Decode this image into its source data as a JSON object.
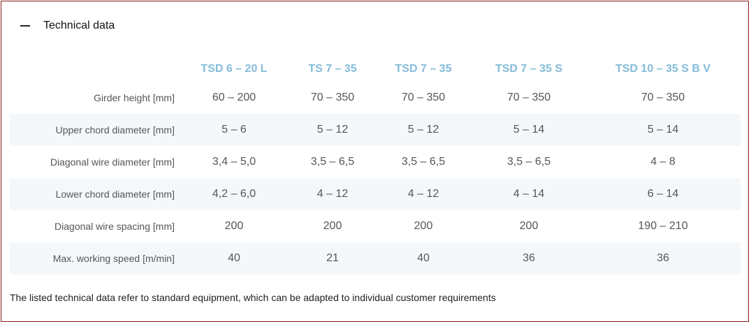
{
  "section": {
    "title": "Technical data",
    "toggle_icon": "minus-icon",
    "expanded": true
  },
  "colors": {
    "header": "#84bcd8",
    "border": "#8b1a1a",
    "stripe": "#f5f8fb"
  },
  "table": {
    "columns": [
      "TSD 6 – 20 L",
      "TS 7 – 35",
      "TSD 7 – 35",
      "TSD 7 – 35 S",
      "TSD 10 – 35 S B V"
    ],
    "rows": [
      {
        "label": "Girder height [mm]",
        "values": [
          "60 – 200",
          "70 – 350",
          "70 – 350",
          "70 – 350",
          "70 – 350"
        ]
      },
      {
        "label": "Upper chord diameter [mm]",
        "values": [
          "5 – 6",
          "5 – 12",
          "5 – 12",
          "5 – 14",
          "5 – 14"
        ]
      },
      {
        "label": "Diagonal wire diameter [mm]",
        "values": [
          "3,4 – 5,0",
          "3,5 – 6,5",
          "3,5 – 6,5",
          "3,5 – 6,5",
          "4 – 8"
        ]
      },
      {
        "label": "Lower chord diameter [mm]",
        "values": [
          "4,2 – 6,0",
          "4 – 12",
          "4 – 12",
          "4 – 14",
          "6 – 14"
        ]
      },
      {
        "label": "Diagonal wire spacing [mm]",
        "values": [
          "200",
          "200",
          "200",
          "200",
          "190 – 210"
        ]
      },
      {
        "label": "Max. working speed [m/min]",
        "values": [
          "40",
          "21",
          "40",
          "36",
          "36"
        ]
      }
    ]
  },
  "note": "The listed technical data refer to standard equipment, which can be adapted to individual customer requirements"
}
